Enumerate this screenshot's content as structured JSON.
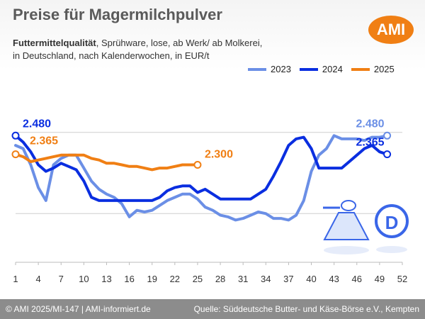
{
  "header": {
    "title": "Preise für Magermilchpulver",
    "subtitle_bold": "Futtermittelqualität",
    "subtitle_rest": ", Sprühware, lose, ab Werk/ ab Molkerei,",
    "subtitle_line2": "in Deutschland, nach Kalenderwochen, in EUR/t",
    "logo_text": "AMI"
  },
  "footer": {
    "left": "© AMI 2025/MI-147 | AMI-informiert.de",
    "right": "Quelle: Süddeutsche Butter- und Käse-Börse e.V., Kempten"
  },
  "chart_data": {
    "type": "line",
    "x_ticks": [
      1,
      4,
      7,
      10,
      13,
      16,
      19,
      22,
      25,
      28,
      31,
      34,
      37,
      40,
      43,
      46,
      49,
      52
    ],
    "xlim": [
      1,
      52
    ],
    "ylim": [
      1700,
      2800
    ],
    "grid": true,
    "legend_position": "top-right",
    "series": [
      {
        "name": "2023",
        "color": "#6b8fe6",
        "values": [
          [
            1,
            2420
          ],
          [
            2,
            2400
          ],
          [
            3,
            2300
          ],
          [
            4,
            2160
          ],
          [
            5,
            2080
          ],
          [
            6,
            2300
          ],
          [
            7,
            2340
          ],
          [
            8,
            2360
          ],
          [
            9,
            2360
          ],
          [
            10,
            2280
          ],
          [
            11,
            2200
          ],
          [
            12,
            2150
          ],
          [
            13,
            2120
          ],
          [
            14,
            2100
          ],
          [
            15,
            2060
          ],
          [
            16,
            1980
          ],
          [
            17,
            2020
          ],
          [
            18,
            2010
          ],
          [
            19,
            2020
          ],
          [
            20,
            2050
          ],
          [
            21,
            2080
          ],
          [
            22,
            2100
          ],
          [
            23,
            2120
          ],
          [
            24,
            2120
          ],
          [
            25,
            2090
          ],
          [
            26,
            2040
          ],
          [
            27,
            2020
          ],
          [
            28,
            1990
          ],
          [
            29,
            1980
          ],
          [
            30,
            1960
          ],
          [
            31,
            1970
          ],
          [
            32,
            1990
          ],
          [
            33,
            2010
          ],
          [
            34,
            2000
          ],
          [
            35,
            1970
          ],
          [
            36,
            1970
          ],
          [
            37,
            1960
          ],
          [
            38,
            1990
          ],
          [
            39,
            2080
          ],
          [
            40,
            2260
          ],
          [
            41,
            2360
          ],
          [
            42,
            2400
          ],
          [
            43,
            2480
          ],
          [
            44,
            2460
          ],
          [
            45,
            2460
          ],
          [
            46,
            2460
          ],
          [
            47,
            2450
          ],
          [
            48,
            2470
          ],
          [
            49,
            2470
          ],
          [
            50,
            2480
          ]
        ]
      },
      {
        "name": "2024",
        "color": "#0a2ee0",
        "values": [
          [
            1,
            2480
          ],
          [
            2,
            2440
          ],
          [
            3,
            2380
          ],
          [
            4,
            2300
          ],
          [
            5,
            2260
          ],
          [
            6,
            2280
          ],
          [
            7,
            2310
          ],
          [
            8,
            2290
          ],
          [
            9,
            2270
          ],
          [
            10,
            2200
          ],
          [
            11,
            2100
          ],
          [
            12,
            2080
          ],
          [
            13,
            2080
          ],
          [
            14,
            2080
          ],
          [
            15,
            2080
          ],
          [
            16,
            2080
          ],
          [
            17,
            2080
          ],
          [
            18,
            2080
          ],
          [
            19,
            2080
          ],
          [
            20,
            2100
          ],
          [
            21,
            2140
          ],
          [
            22,
            2160
          ],
          [
            23,
            2170
          ],
          [
            24,
            2170
          ],
          [
            25,
            2130
          ],
          [
            26,
            2150
          ],
          [
            27,
            2120
          ],
          [
            28,
            2090
          ],
          [
            29,
            2090
          ],
          [
            30,
            2090
          ],
          [
            31,
            2090
          ],
          [
            32,
            2090
          ],
          [
            33,
            2120
          ],
          [
            34,
            2150
          ],
          [
            35,
            2230
          ],
          [
            36,
            2320
          ],
          [
            37,
            2420
          ],
          [
            38,
            2460
          ],
          [
            39,
            2470
          ],
          [
            40,
            2400
          ],
          [
            41,
            2280
          ],
          [
            42,
            2280
          ],
          [
            43,
            2280
          ],
          [
            44,
            2280
          ],
          [
            45,
            2320
          ],
          [
            46,
            2360
          ],
          [
            47,
            2400
          ],
          [
            48,
            2420
          ],
          [
            49,
            2380
          ],
          [
            50,
            2365
          ]
        ]
      },
      {
        "name": "2025",
        "color": "#f07f14",
        "values": [
          [
            1,
            2365
          ],
          [
            2,
            2350
          ],
          [
            3,
            2320
          ],
          [
            4,
            2330
          ],
          [
            5,
            2340
          ],
          [
            6,
            2350
          ],
          [
            7,
            2360
          ],
          [
            8,
            2360
          ],
          [
            9,
            2360
          ],
          [
            10,
            2360
          ],
          [
            11,
            2340
          ],
          [
            12,
            2330
          ],
          [
            13,
            2310
          ],
          [
            14,
            2310
          ],
          [
            15,
            2300
          ],
          [
            16,
            2290
          ],
          [
            17,
            2290
          ],
          [
            18,
            2280
          ],
          [
            19,
            2270
          ],
          [
            20,
            2280
          ],
          [
            21,
            2280
          ],
          [
            22,
            2290
          ],
          [
            23,
            2300
          ],
          [
            24,
            2300
          ],
          [
            25,
            2300
          ]
        ]
      }
    ],
    "annotations": [
      {
        "text": "2.480",
        "x": 1,
        "y": 2480,
        "series": "2024"
      },
      {
        "text": "2.365",
        "x": 1,
        "y": 2365,
        "series": "2025"
      },
      {
        "text": "2.300",
        "x": 25,
        "y": 2300,
        "series": "2025"
      },
      {
        "text": "2.480",
        "x": 50,
        "y": 2480,
        "series": "2023"
      },
      {
        "text": "2.365",
        "x": 50,
        "y": 2365,
        "series": "2024"
      }
    ]
  }
}
